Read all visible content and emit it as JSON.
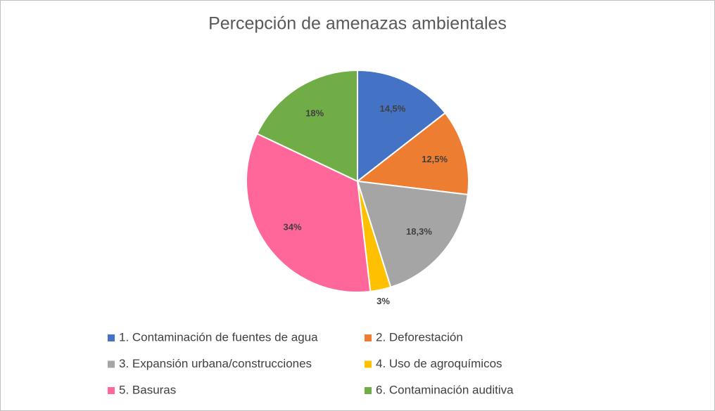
{
  "chart_data": {
    "type": "pie",
    "title": "Percepción de amenazas ambientales",
    "categories": [
      "1. Contaminación de fuentes de agua",
      "2. Deforestación",
      "3. Expansión urbana/construcciones",
      "4. Uso de agroquímicos",
      "5. Basuras",
      "6. Contaminación auditiva"
    ],
    "values": [
      14.5,
      12.5,
      18.3,
      3,
      34,
      18
    ],
    "value_labels": [
      "14,5%",
      "12,5%",
      "18,3%",
      "3%",
      "34%",
      "18%"
    ],
    "colors": [
      "#4472c4",
      "#ed7d31",
      "#a5a5a5",
      "#ffc000",
      "#ff6699",
      "#70ad47"
    ],
    "legend": "bottom"
  }
}
